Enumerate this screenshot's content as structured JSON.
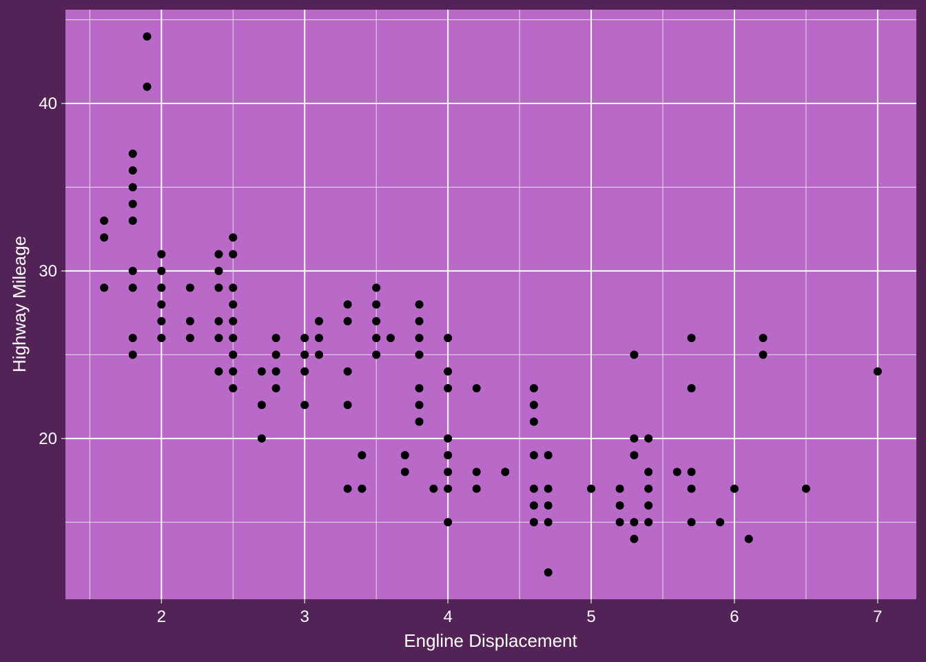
{
  "colors": {
    "background": "#532357",
    "panel": "#b969c7",
    "grid": "#ffffff",
    "points": "#000000",
    "text": "#ffffff"
  },
  "chart_data": {
    "type": "scatter",
    "title": "",
    "xlabel": "Engline Displacement",
    "ylabel": "Highway Mileage",
    "xlim": [
      1.33,
      7.27
    ],
    "ylim": [
      10.4,
      45.6
    ],
    "x_ticks": [
      2,
      3,
      4,
      5,
      6,
      7
    ],
    "y_ticks": [
      20,
      30,
      40
    ],
    "x_tick_labels": [
      "2",
      "3",
      "4",
      "5",
      "6",
      "7"
    ],
    "y_tick_labels": [
      "20",
      "30",
      "40"
    ],
    "grid": true,
    "legend": "none",
    "points": [
      [
        1.6,
        33
      ],
      [
        1.6,
        32
      ],
      [
        1.6,
        29
      ],
      [
        1.8,
        37
      ],
      [
        1.8,
        36
      ],
      [
        1.8,
        35
      ],
      [
        1.8,
        34
      ],
      [
        1.8,
        33
      ],
      [
        1.8,
        30
      ],
      [
        1.8,
        29
      ],
      [
        1.8,
        26
      ],
      [
        1.8,
        25
      ],
      [
        1.9,
        44
      ],
      [
        1.9,
        41
      ],
      [
        2.0,
        31
      ],
      [
        2.0,
        30
      ],
      [
        2.0,
        29
      ],
      [
        2.0,
        28
      ],
      [
        2.0,
        27
      ],
      [
        2.0,
        26
      ],
      [
        2.2,
        29
      ],
      [
        2.2,
        27
      ],
      [
        2.2,
        26
      ],
      [
        2.4,
        31
      ],
      [
        2.4,
        30
      ],
      [
        2.4,
        29
      ],
      [
        2.4,
        27
      ],
      [
        2.4,
        26
      ],
      [
        2.4,
        24
      ],
      [
        2.5,
        32
      ],
      [
        2.5,
        31
      ],
      [
        2.5,
        29
      ],
      [
        2.5,
        28
      ],
      [
        2.5,
        27
      ],
      [
        2.5,
        26
      ],
      [
        2.5,
        25
      ],
      [
        2.5,
        24
      ],
      [
        2.5,
        23
      ],
      [
        2.7,
        24
      ],
      [
        2.7,
        22
      ],
      [
        2.7,
        20
      ],
      [
        2.8,
        26
      ],
      [
        2.8,
        25
      ],
      [
        2.8,
        24
      ],
      [
        2.8,
        23
      ],
      [
        3.0,
        26
      ],
      [
        3.0,
        25
      ],
      [
        3.0,
        24
      ],
      [
        3.0,
        22
      ],
      [
        3.1,
        27
      ],
      [
        3.1,
        26
      ],
      [
        3.1,
        25
      ],
      [
        3.3,
        28
      ],
      [
        3.3,
        27
      ],
      [
        3.3,
        24
      ],
      [
        3.3,
        22
      ],
      [
        3.3,
        17
      ],
      [
        3.4,
        19
      ],
      [
        3.4,
        17
      ],
      [
        3.5,
        29
      ],
      [
        3.5,
        28
      ],
      [
        3.5,
        27
      ],
      [
        3.5,
        26
      ],
      [
        3.5,
        25
      ],
      [
        3.6,
        26
      ],
      [
        3.7,
        19
      ],
      [
        3.7,
        18
      ],
      [
        3.8,
        28
      ],
      [
        3.8,
        27
      ],
      [
        3.8,
        26
      ],
      [
        3.8,
        25
      ],
      [
        3.8,
        23
      ],
      [
        3.8,
        22
      ],
      [
        3.8,
        21
      ],
      [
        3.9,
        17
      ],
      [
        4.0,
        26
      ],
      [
        4.0,
        24
      ],
      [
        4.0,
        23
      ],
      [
        4.0,
        20
      ],
      [
        4.0,
        19
      ],
      [
        4.0,
        18
      ],
      [
        4.0,
        17
      ],
      [
        4.0,
        15
      ],
      [
        4.2,
        23
      ],
      [
        4.2,
        18
      ],
      [
        4.2,
        17
      ],
      [
        4.4,
        18
      ],
      [
        4.6,
        23
      ],
      [
        4.6,
        22
      ],
      [
        4.6,
        21
      ],
      [
        4.6,
        19
      ],
      [
        4.6,
        17
      ],
      [
        4.6,
        16
      ],
      [
        4.6,
        15
      ],
      [
        4.7,
        19
      ],
      [
        4.7,
        17
      ],
      [
        4.7,
        16
      ],
      [
        4.7,
        15
      ],
      [
        4.7,
        12
      ],
      [
        5.0,
        17
      ],
      [
        5.2,
        17
      ],
      [
        5.2,
        16
      ],
      [
        5.2,
        15
      ],
      [
        5.3,
        25
      ],
      [
        5.3,
        20
      ],
      [
        5.3,
        19
      ],
      [
        5.3,
        15
      ],
      [
        5.3,
        14
      ],
      [
        5.4,
        20
      ],
      [
        5.4,
        18
      ],
      [
        5.4,
        17
      ],
      [
        5.4,
        16
      ],
      [
        5.4,
        15
      ],
      [
        5.6,
        18
      ],
      [
        5.7,
        26
      ],
      [
        5.7,
        23
      ],
      [
        5.7,
        18
      ],
      [
        5.7,
        17
      ],
      [
        5.7,
        15
      ],
      [
        5.9,
        15
      ],
      [
        6.0,
        17
      ],
      [
        6.1,
        14
      ],
      [
        6.2,
        26
      ],
      [
        6.2,
        25
      ],
      [
        6.5,
        17
      ],
      [
        7.0,
        24
      ]
    ]
  }
}
